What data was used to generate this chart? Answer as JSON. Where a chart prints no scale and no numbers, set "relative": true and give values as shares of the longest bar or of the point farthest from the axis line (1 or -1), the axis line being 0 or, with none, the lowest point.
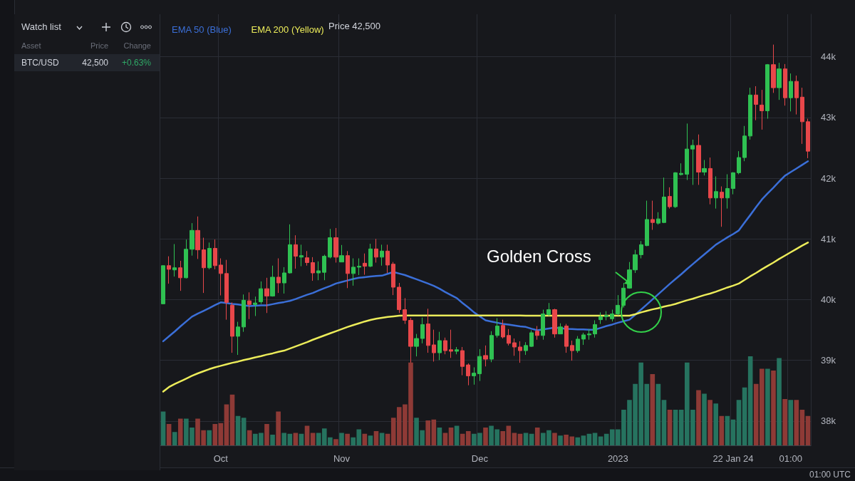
{
  "chart_data": [
    {
      "type": "candlestick",
      "ylim": [
        37600,
        44700
      ],
      "yticks": [
        {
          "value": 38000,
          "label": "38k"
        },
        {
          "value": 39000,
          "label": "39k"
        },
        {
          "value": 40000,
          "label": "40k"
        },
        {
          "value": 41000,
          "label": "41k"
        },
        {
          "value": 42000,
          "label": "42k"
        },
        {
          "value": 43000,
          "label": "43k"
        },
        {
          "value": 44000,
          "label": "44k"
        }
      ],
      "categories": [
        null,
        null,
        null,
        null,
        null,
        null,
        null,
        null,
        null,
        null,
        "Oct",
        null,
        null,
        null,
        null,
        null,
        null,
        null,
        null,
        null,
        null,
        null,
        null,
        null,
        null,
        null,
        null,
        null,
        null,
        null,
        null,
        "Nov",
        null,
        null,
        null,
        null,
        null,
        null,
        null,
        null,
        null,
        null,
        null,
        null,
        null,
        null,
        null,
        null,
        null,
        null,
        null,
        null,
        null,
        null,
        null,
        "Dec",
        null,
        null,
        null,
        null,
        null,
        null,
        null,
        null,
        null,
        null,
        null,
        null,
        null,
        null,
        null,
        null,
        null,
        null,
        null,
        null,
        null,
        null,
        null,
        "2023",
        null,
        null,
        null,
        null,
        null,
        null,
        null,
        null,
        null,
        null,
        null,
        null,
        null,
        null,
        null,
        null,
        null,
        null,
        null,
        "22 Jan 24",
        null,
        null,
        null,
        null,
        null,
        null,
        null,
        null,
        null,
        "01:00",
        null,
        null,
        null
      ],
      "colors": [
        "#2fc152",
        "#e8474a",
        "#2fc152",
        "#e8474a",
        "#2fc152",
        "#2fc152",
        "#e8474a",
        "#e8474a",
        "#2fc152",
        "#e8474a",
        "#e8474a",
        "#e8474a",
        "#e8474a",
        "#2fc152",
        "#2fc152",
        "#e8474a",
        "#2fc152",
        "#2fc152",
        "#e8474a",
        "#2fc152",
        "#e8474a",
        "#2fc152",
        "#2fc152",
        "#e8474a",
        "#2fc152",
        "#e8474a",
        "#e8474a",
        "#2fc152",
        "#2fc152",
        "#2fc152",
        "#e8474a",
        "#2fc152",
        "#e8474a",
        "#2fc152",
        "#2fc152",
        "#e8474a",
        "#2fc152",
        "#e8474a",
        "#2fc152",
        "#e8474a",
        "#e8474a",
        "#e8474a",
        "#e8474a",
        "#e8474a",
        "#2fc152",
        "#2fc152",
        "#e8474a",
        "#e8474a",
        "#2fc152",
        "#e8474a",
        "#e8474a",
        "#2fc152",
        "#e8474a",
        "#e8474a",
        "#2fc152",
        "#2fc152",
        "#e8474a",
        "#2fc152",
        "#2fc152",
        "#e8474a",
        "#e8474a",
        "#e8474a",
        "#e8474a",
        "#2fc152",
        "#2fc152",
        "#e8474a",
        "#2fc152",
        "#2fc152",
        "#e8474a",
        "#2fc152",
        "#e8474a",
        "#e8474a",
        "#2fc152",
        "#2fc152",
        "#2fc152",
        "#2fc152",
        "#2fc152",
        "#2fc152",
        "#2fc152",
        "#2fc152",
        "#2fc152",
        "#2fc152",
        "#2fc152",
        "#2fc152",
        "#2fc152",
        "#e8474a",
        "#2fc152",
        "#2fc152",
        "#e8474a",
        "#2fc152",
        "#2fc152",
        "#2fc152",
        "#2fc152",
        "#e8474a",
        "#2fc152",
        "#e8474a",
        "#2fc152",
        "#e8474a",
        "#2fc152",
        "#2fc152",
        "#2fc152",
        "#2fc152",
        "#2fc152",
        "#e8474a",
        "#e8474a",
        "#2fc152",
        "#e8474a",
        "#2fc152",
        "#e8474a",
        "#2fc152",
        "#e8474a",
        "#e8474a",
        "#e8474a"
      ],
      "ohlc": [
        [
          39931,
          40560,
          39931,
          40560
        ],
        [
          40560,
          40714,
          40263,
          40500
        ],
        [
          40490,
          40915,
          40380,
          40525
        ],
        [
          40525,
          40640,
          40145,
          40360
        ],
        [
          40360,
          40990,
          40350,
          40830
        ],
        [
          40830,
          41260,
          40725,
          41140
        ],
        [
          41140,
          41370,
          40670,
          40820
        ],
        [
          40820,
          41020,
          40110,
          40525
        ],
        [
          40525,
          40940,
          40500,
          40845
        ],
        [
          40845,
          40990,
          40500,
          40560
        ],
        [
          40570,
          40680,
          40070,
          40430
        ],
        [
          40430,
          40655,
          39670,
          39955
        ],
        [
          39907,
          39955,
          39125,
          39397
        ],
        [
          39397,
          39635,
          39090,
          39550
        ],
        [
          39550,
          40085,
          39470,
          39990
        ],
        [
          39980,
          40120,
          39680,
          39920
        ],
        [
          39920,
          40050,
          39730,
          39945
        ],
        [
          39965,
          40300,
          39930,
          40180
        ],
        [
          40180,
          40360,
          39780,
          40060
        ],
        [
          40060,
          40560,
          40050,
          40370
        ],
        [
          40370,
          40680,
          40110,
          40275
        ],
        [
          40275,
          40535,
          40100,
          40440
        ],
        [
          40440,
          41240,
          40430,
          40905
        ],
        [
          40905,
          41060,
          40510,
          40715
        ],
        [
          40700,
          40905,
          40550,
          40725
        ],
        [
          40690,
          40800,
          40560,
          40610
        ],
        [
          40610,
          40700,
          40310,
          40440
        ],
        [
          40440,
          40630,
          40320,
          40475
        ],
        [
          40450,
          40740,
          40320,
          40715
        ],
        [
          40700,
          41165,
          40680,
          41020
        ],
        [
          41020,
          41180,
          40610,
          40700
        ],
        [
          40620,
          40900,
          40620,
          40725
        ],
        [
          40725,
          40800,
          40190,
          40430
        ],
        [
          40430,
          40680,
          40230,
          40535
        ],
        [
          40535,
          40680,
          40405,
          40550
        ],
        [
          40600,
          40760,
          40410,
          40550
        ],
        [
          40550,
          40920,
          40535,
          40835
        ],
        [
          40835,
          41000,
          40610,
          40700
        ],
        [
          40700,
          40905,
          40560,
          40800
        ],
        [
          40800,
          40905,
          40440,
          40570
        ],
        [
          40585,
          40620,
          40075,
          40205
        ],
        [
          40205,
          40275,
          39780,
          39835
        ],
        [
          39835,
          40025,
          39600,
          39660
        ],
        [
          39660,
          39700,
          38745,
          39230
        ],
        [
          39230,
          39435,
          39065,
          39360
        ],
        [
          39360,
          39705,
          39280,
          39590
        ],
        [
          39600,
          39850,
          39125,
          39245
        ],
        [
          39255,
          39505,
          38980,
          39125
        ],
        [
          39125,
          39470,
          39005,
          39325
        ],
        [
          39325,
          39375,
          39100,
          39160
        ],
        [
          39175,
          39505,
          39040,
          39150
        ],
        [
          39150,
          39220,
          39100,
          39175
        ],
        [
          39160,
          39220,
          38755,
          38900
        ],
        [
          38925,
          38950,
          38590,
          38745
        ],
        [
          38745,
          38885,
          38600,
          38790
        ],
        [
          38780,
          39185,
          38660,
          39065
        ],
        [
          39080,
          39245,
          38900,
          39020
        ],
        [
          39020,
          39480,
          38970,
          39410
        ],
        [
          39410,
          39695,
          39375,
          39565
        ],
        [
          39575,
          39670,
          39360,
          39385
        ],
        [
          39410,
          39515,
          39245,
          39280
        ],
        [
          39290,
          39360,
          39075,
          39220
        ],
        [
          39220,
          39315,
          38960,
          39160
        ],
        [
          39160,
          39300,
          39090,
          39245
        ],
        [
          39230,
          39495,
          39220,
          39455
        ],
        [
          39480,
          39565,
          39340,
          39410
        ],
        [
          39410,
          39835,
          39340,
          39765
        ],
        [
          39755,
          39945,
          39730,
          39835
        ],
        [
          39835,
          39850,
          39375,
          39435
        ],
        [
          39435,
          39610,
          39435,
          39550
        ],
        [
          39565,
          39600,
          39125,
          39230
        ],
        [
          39245,
          39325,
          38995,
          39160
        ],
        [
          39160,
          39400,
          39125,
          39350
        ],
        [
          39350,
          39455,
          39255,
          39420
        ],
        [
          39420,
          39515,
          39340,
          39435
        ],
        [
          39435,
          39660,
          39375,
          39590
        ],
        [
          39670,
          39790,
          39600,
          39720
        ],
        [
          39720,
          39810,
          39660,
          39740
        ],
        [
          39685,
          39835,
          39640,
          39765
        ],
        [
          39765,
          40075,
          39740,
          39907
        ],
        [
          39907,
          40275,
          39870,
          40190
        ],
        [
          40190,
          40620,
          40180,
          40490
        ],
        [
          40490,
          40820,
          40440,
          40740
        ],
        [
          40740,
          40965,
          40680,
          40905
        ],
        [
          40890,
          41630,
          40880,
          41320
        ],
        [
          41320,
          41630,
          41150,
          41270
        ],
        [
          41260,
          41440,
          41235,
          41330
        ],
        [
          41270,
          42010,
          41260,
          41690
        ],
        [
          41700,
          41850,
          41500,
          41530
        ],
        [
          41530,
          42100,
          41510,
          42090
        ],
        [
          42060,
          42245,
          42045,
          42080
        ],
        [
          42065,
          42900,
          41970,
          42480
        ],
        [
          42480,
          42635,
          41890,
          42540
        ],
        [
          42540,
          42720,
          41890,
          42100
        ],
        [
          42100,
          42300,
          42045,
          42160
        ],
        [
          42160,
          42340,
          41570,
          41675
        ],
        [
          41675,
          42030,
          41500,
          41780
        ],
        [
          41770,
          41865,
          41200,
          41675
        ],
        [
          41675,
          42065,
          41500,
          41830
        ],
        [
          41830,
          42100,
          41735,
          42090
        ],
        [
          42090,
          42445,
          42065,
          42340
        ],
        [
          42340,
          42860,
          42280,
          42695
        ],
        [
          42695,
          43490,
          42635,
          43370
        ],
        [
          43370,
          43515,
          42955,
          43215
        ],
        [
          43205,
          43455,
          42800,
          43110
        ],
        [
          43110,
          43880,
          42980,
          43870
        ],
        [
          43870,
          44200,
          43405,
          43490
        ],
        [
          43490,
          43900,
          43290,
          43800
        ],
        [
          43800,
          43880,
          43195,
          43325
        ],
        [
          43325,
          43725,
          43100,
          43595
        ],
        [
          43595,
          43690,
          43050,
          43325
        ],
        [
          43335,
          43490,
          42565,
          42930
        ],
        [
          42930,
          42980,
          42330,
          42445
        ]
      ],
      "series": [
        {
          "type": "line",
          "name": "EMA 50 (Blue)",
          "color": "#3b6fd8",
          "values": [
            39315,
            39395,
            39475,
            39560,
            39640,
            39720,
            39770,
            39815,
            39860,
            39910,
            39955,
            39945,
            39930,
            39920,
            39905,
            39895,
            39900,
            39905,
            39907,
            39925,
            39945,
            39960,
            39980,
            40010,
            40045,
            40080,
            40110,
            40150,
            40190,
            40225,
            40265,
            40290,
            40315,
            40340,
            40360,
            40370,
            40380,
            40390,
            40395,
            40425,
            40455,
            40430,
            40405,
            40370,
            40335,
            40300,
            40265,
            40228,
            40180,
            40125,
            40075,
            40025,
            39945,
            39870,
            39790,
            39725,
            39660,
            39640,
            39620,
            39600,
            39590,
            39575,
            39560,
            39550,
            39520,
            39495,
            39510,
            39525,
            39540,
            39530,
            39520,
            39515,
            39510,
            39510,
            39505,
            39505,
            39535,
            39565,
            39590,
            39620,
            39645,
            39670,
            39750,
            39835,
            39920,
            40005,
            40090,
            40175,
            40260,
            40340,
            40420,
            40505,
            40585,
            40665,
            40745,
            40825,
            40905,
            40965,
            41025,
            41080,
            41140,
            41270,
            41395,
            41525,
            41650,
            41750,
            41845,
            41945,
            42040,
            42100,
            42160,
            42220,
            42280
          ]
        },
        {
          "type": "line",
          "name": "EMA 200 (Yellow)",
          "color": "#ecec5a",
          "values": [
            38485,
            38560,
            38610,
            38655,
            38700,
            38745,
            38785,
            38820,
            38855,
            38885,
            38910,
            38935,
            38960,
            38980,
            39005,
            39025,
            39050,
            39070,
            39095,
            39115,
            39140,
            39160,
            39195,
            39230,
            39265,
            39300,
            39340,
            39375,
            39410,
            39445,
            39480,
            39515,
            39550,
            39580,
            39610,
            39640,
            39665,
            39685,
            39700,
            39715,
            39725,
            39735,
            39740,
            39740,
            39740,
            39740,
            39740,
            39740,
            39740,
            39740,
            39740,
            39740,
            39740,
            39740,
            39740,
            39740,
            39740,
            39740,
            39740,
            39740,
            39740,
            39740,
            39740,
            39735,
            39735,
            39735,
            39735,
            39735,
            39735,
            39735,
            39735,
            39735,
            39735,
            39735,
            39735,
            39735,
            39735,
            39735,
            39735,
            39735,
            39735,
            39735,
            39760,
            39790,
            39815,
            39840,
            39860,
            39885,
            39905,
            39930,
            39960,
            39990,
            40015,
            40045,
            40075,
            40100,
            40130,
            40165,
            40200,
            40230,
            40265,
            40325,
            40385,
            40440,
            40500,
            40555,
            40610,
            40670,
            40725,
            40780,
            40835,
            40890,
            40940
          ]
        }
      ],
      "legend": "top left",
      "grid": true,
      "annotations": [
        "Price 42,500",
        "Golden Cross",
        "01:00 UTC"
      ]
    },
    {
      "type": "bar",
      "relative": true,
      "categories": [
        null,
        null,
        null,
        null,
        null,
        null,
        null,
        null,
        null,
        null,
        null,
        null,
        null,
        null,
        null,
        null,
        null,
        null,
        null,
        null,
        null,
        null,
        null,
        null,
        null,
        null,
        null,
        null,
        null,
        null,
        null,
        null,
        null,
        null,
        null,
        null,
        null,
        null,
        null,
        null,
        null,
        null,
        null,
        null,
        null,
        null,
        null,
        null,
        null,
        null,
        null,
        null,
        null,
        null,
        null,
        null,
        null,
        null,
        null,
        null,
        null,
        null,
        null,
        null,
        null,
        null,
        null,
        null,
        null,
        null,
        null,
        null,
        null,
        null,
        null,
        null,
        null,
        null,
        null,
        null,
        null,
        null,
        null,
        null,
        null,
        null,
        null,
        null,
        null,
        null,
        null,
        null,
        null,
        null,
        null,
        null,
        null,
        null,
        null,
        null,
        null,
        null,
        null,
        null,
        null,
        null,
        null,
        null,
        null,
        null,
        null,
        null,
        null
      ],
      "values": [
        0.38,
        0.24,
        0.15,
        0.3,
        0.3,
        0.2,
        0.3,
        0.17,
        0.17,
        0.24,
        0.25,
        0.46,
        0.57,
        0.33,
        0.31,
        0.17,
        0.13,
        0.14,
        0.24,
        0.12,
        0.38,
        0.14,
        0.13,
        0.14,
        0.13,
        0.22,
        0.14,
        0.14,
        0.19,
        0.09,
        0.07,
        0.14,
        0.13,
        0.09,
        0.18,
        0.13,
        0.11,
        0.16,
        0.14,
        0.13,
        0.31,
        0.43,
        0.46,
        0.93,
        0.31,
        0.17,
        0.28,
        0.29,
        0.2,
        0.14,
        0.2,
        0.22,
        0.13,
        0.16,
        0.13,
        0.14,
        0.2,
        0.22,
        0.18,
        0.16,
        0.22,
        0.14,
        0.13,
        0.14,
        0.13,
        0.2,
        0.14,
        0.17,
        0.14,
        0.11,
        0.12,
        0.1,
        0.09,
        0.11,
        0.13,
        0.14,
        0.1,
        0.13,
        0.18,
        0.18,
        0.4,
        0.51,
        0.69,
        0.93,
        0.69,
        0.8,
        0.69,
        0.51,
        0.4,
        0.4,
        0.4,
        0.93,
        0.4,
        0.62,
        0.58,
        0.51,
        0.47,
        0.33,
        0.33,
        0.29,
        0.51,
        0.65,
        1,
        0.69,
        0.86,
        0.86,
        0.84,
        0.98,
        0.52,
        0.51,
        0.51,
        0.4,
        0.33
      ],
      "colors": [
        "#26735f",
        "#8e3a36",
        "#26735f",
        "#8e3a36",
        "#26735f",
        "#26735f",
        "#8e3a36",
        "#8e3a36",
        "#26735f",
        "#8e3a36",
        "#8e3a36",
        "#8e3a36",
        "#8e3a36",
        "#26735f",
        "#26735f",
        "#8e3a36",
        "#26735f",
        "#26735f",
        "#8e3a36",
        "#26735f",
        "#8e3a36",
        "#26735f",
        "#26735f",
        "#8e3a36",
        "#26735f",
        "#8e3a36",
        "#8e3a36",
        "#26735f",
        "#26735f",
        "#26735f",
        "#8e3a36",
        "#26735f",
        "#8e3a36",
        "#26735f",
        "#26735f",
        "#8e3a36",
        "#26735f",
        "#8e3a36",
        "#26735f",
        "#8e3a36",
        "#8e3a36",
        "#8e3a36",
        "#8e3a36",
        "#8e3a36",
        "#26735f",
        "#26735f",
        "#8e3a36",
        "#8e3a36",
        "#26735f",
        "#8e3a36",
        "#8e3a36",
        "#26735f",
        "#8e3a36",
        "#8e3a36",
        "#26735f",
        "#26735f",
        "#8e3a36",
        "#26735f",
        "#26735f",
        "#8e3a36",
        "#8e3a36",
        "#8e3a36",
        "#8e3a36",
        "#26735f",
        "#26735f",
        "#8e3a36",
        "#26735f",
        "#26735f",
        "#8e3a36",
        "#26735f",
        "#8e3a36",
        "#8e3a36",
        "#26735f",
        "#26735f",
        "#26735f",
        "#26735f",
        "#26735f",
        "#26735f",
        "#26735f",
        "#26735f",
        "#26735f",
        "#26735f",
        "#26735f",
        "#26735f",
        "#26735f",
        "#8e3a36",
        "#26735f",
        "#26735f",
        "#8e3a36",
        "#26735f",
        "#26735f",
        "#26735f",
        "#26735f",
        "#8e3a36",
        "#26735f",
        "#8e3a36",
        "#26735f",
        "#8e3a36",
        "#26735f",
        "#26735f",
        "#26735f",
        "#26735f",
        "#26735f",
        "#8e3a36",
        "#8e3a36",
        "#26735f",
        "#8e3a36",
        "#26735f",
        "#8e3a36",
        "#26735f",
        "#8e3a36",
        "#8e3a36",
        "#8e3a36"
      ]
    },
    {
      "type": "other",
      "annotations": [
        "Watch list",
        "Asset",
        "Price",
        "Change",
        "BTC/USD",
        "42,500",
        "+0.63%"
      ]
    }
  ]
}
